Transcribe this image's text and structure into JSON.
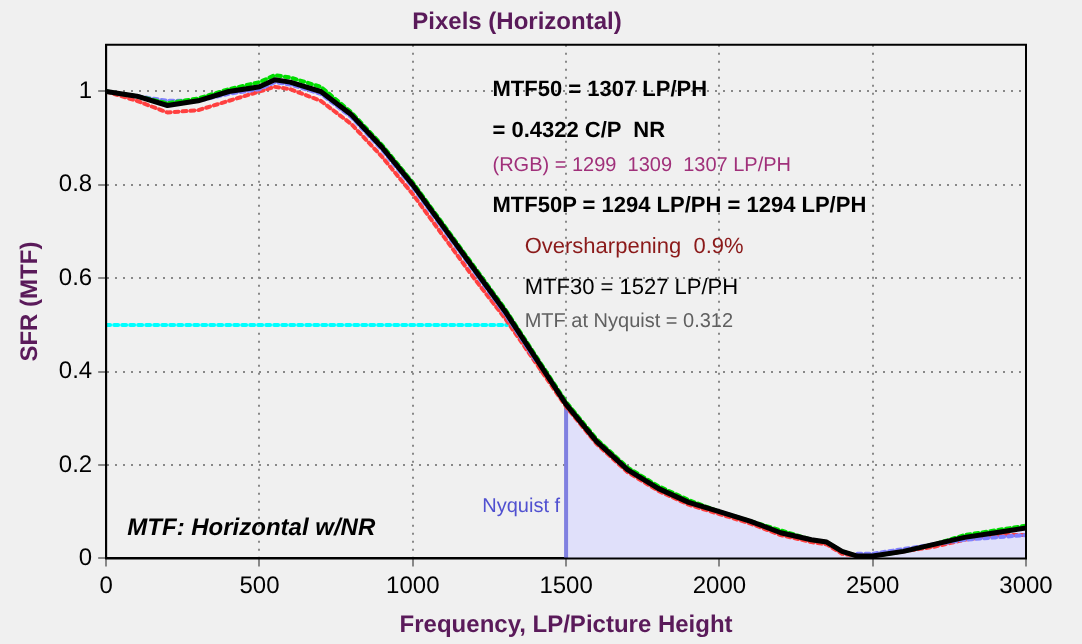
{
  "chart_data": {
    "type": "line",
    "title": "Pixels (Horizontal)",
    "xlabel": "Frequency, LP/Picture Height",
    "ylabel": "SFR (MTF)",
    "xlim": [
      0,
      3000
    ],
    "xticks": [
      0,
      500,
      1000,
      1500,
      2000,
      2500,
      3000
    ],
    "ylim": [
      0,
      1.1
    ],
    "yticks": [
      0,
      0.2,
      0.4,
      0.6,
      0.8,
      1
    ],
    "grid": true,
    "legend": false,
    "marker": "none",
    "annotations": [
      "MTF50 = 1307 LP/PH",
      "= 0.4322 C/P  NR",
      "(RGB) = 1299  1309  1307 LP/PH",
      "MTF50P = 1294 LP/PH = 1294 LP/PH",
      "Oversharpening  0.9%",
      "MTF30 = 1527 LP/PH",
      "MTF at Nyquist = 0.312",
      "MTF: Horizontal w/NR",
      {
        "text": "Nyquist f",
        "x": 1500,
        "y": 0.1
      }
    ],
    "series": [
      {
        "color": "#000000",
        "line_style": "solid",
        "x": [
          0,
          100,
          200,
          300,
          400,
          500,
          550,
          600,
          700,
          800,
          900,
          1000,
          1100,
          1200,
          1300,
          1400,
          1500,
          1600,
          1700,
          1800,
          1900,
          2000,
          2100,
          2200,
          2300,
          2350,
          2400,
          2450,
          2500,
          2600,
          2700,
          2800,
          2900,
          3000
        ],
        "values": [
          1.0,
          0.99,
          0.97,
          0.98,
          1.0,
          1.01,
          1.025,
          1.02,
          1.0,
          0.95,
          0.88,
          0.8,
          0.71,
          0.62,
          0.53,
          0.43,
          0.33,
          0.25,
          0.19,
          0.15,
          0.12,
          0.1,
          0.08,
          0.055,
          0.04,
          0.035,
          0.015,
          0.005,
          0.005,
          0.015,
          0.03,
          0.045,
          0.055,
          0.065
        ]
      },
      {
        "color": "#00dd00",
        "line_style": "dotted",
        "x": [
          0,
          100,
          200,
          300,
          400,
          500,
          550,
          600,
          700,
          800,
          900,
          1000,
          1100,
          1200,
          1300,
          1400,
          1500,
          1600,
          1700,
          1800,
          1900,
          2000,
          2100,
          2200,
          2300,
          2350,
          2400,
          2450,
          2500,
          2600,
          2700,
          2800,
          2900,
          3000
        ],
        "values": [
          1.0,
          0.99,
          0.975,
          0.985,
          1.005,
          1.02,
          1.035,
          1.03,
          1.01,
          0.955,
          0.885,
          0.805,
          0.715,
          0.625,
          0.535,
          0.435,
          0.335,
          0.255,
          0.195,
          0.155,
          0.125,
          0.1,
          0.08,
          0.06,
          0.04,
          0.035,
          0.015,
          0.005,
          0.005,
          0.015,
          0.03,
          0.05,
          0.06,
          0.07
        ]
      },
      {
        "color": "#8080ff",
        "line_style": "dotted",
        "x": [
          0,
          100,
          200,
          300,
          400,
          500,
          550,
          600,
          700,
          800,
          900,
          1000,
          1100,
          1200,
          1300,
          1400,
          1500,
          1600,
          1700,
          1800,
          1900,
          2000,
          2100,
          2200,
          2300,
          2350,
          2400,
          2450,
          2500,
          2600,
          2700,
          2800,
          2900,
          3000
        ],
        "values": [
          1.0,
          0.99,
          0.98,
          0.98,
          0.995,
          1.005,
          1.02,
          1.015,
          0.995,
          0.945,
          0.875,
          0.795,
          0.705,
          0.615,
          0.525,
          0.425,
          null,
          null,
          null,
          null,
          null,
          null,
          null,
          null,
          null,
          null,
          null,
          0.01,
          0.01,
          0.02,
          0.03,
          0.04,
          0.045,
          0.05
        ]
      },
      {
        "color": "#ff4040",
        "line_style": "dotted",
        "x": [
          0,
          100,
          200,
          300,
          400,
          500,
          550,
          600,
          700,
          800,
          900,
          1000,
          1100,
          1200,
          1300,
          1400,
          1500,
          1600,
          1700,
          1800,
          1900,
          2000,
          2100,
          2200,
          2300,
          2350,
          2400,
          2450,
          2500,
          2600,
          2700,
          2800,
          2900,
          3000
        ],
        "values": [
          1.0,
          0.98,
          0.955,
          0.96,
          0.98,
          1.0,
          1.01,
          1.005,
          0.98,
          0.93,
          0.86,
          0.78,
          0.69,
          0.6,
          0.515,
          0.42,
          0.325,
          0.245,
          0.185,
          0.145,
          0.115,
          0.095,
          0.075,
          0.05,
          0.035,
          0.03,
          0.01,
          0.005,
          0.005,
          0.015,
          0.025,
          0.04,
          0.05,
          0.05
        ]
      },
      {
        "color": "#00ffff",
        "line_style": "dotted",
        "x": [
          0,
          1307
        ],
        "values": [
          0.5,
          0.5
        ]
      },
      {
        "color": "#8080e0",
        "line_style": "solid",
        "x": [
          1500,
          1500
        ],
        "values": [
          0,
          0.33
        ]
      },
      {
        "type": "area",
        "color": "#e0e0fa",
        "x": [
          1500,
          1600,
          1700,
          1800,
          1900,
          2000,
          2100,
          2200,
          2300,
          2350,
          2400,
          2450,
          2500,
          2600,
          2700,
          2800,
          2900,
          3000
        ],
        "values": [
          0.33,
          0.25,
          0.19,
          0.15,
          0.12,
          0.1,
          0.08,
          0.055,
          0.04,
          0.035,
          0.015,
          0.005,
          0.005,
          0.015,
          0.03,
          0.045,
          0.055,
          0.065
        ]
      }
    ]
  }
}
